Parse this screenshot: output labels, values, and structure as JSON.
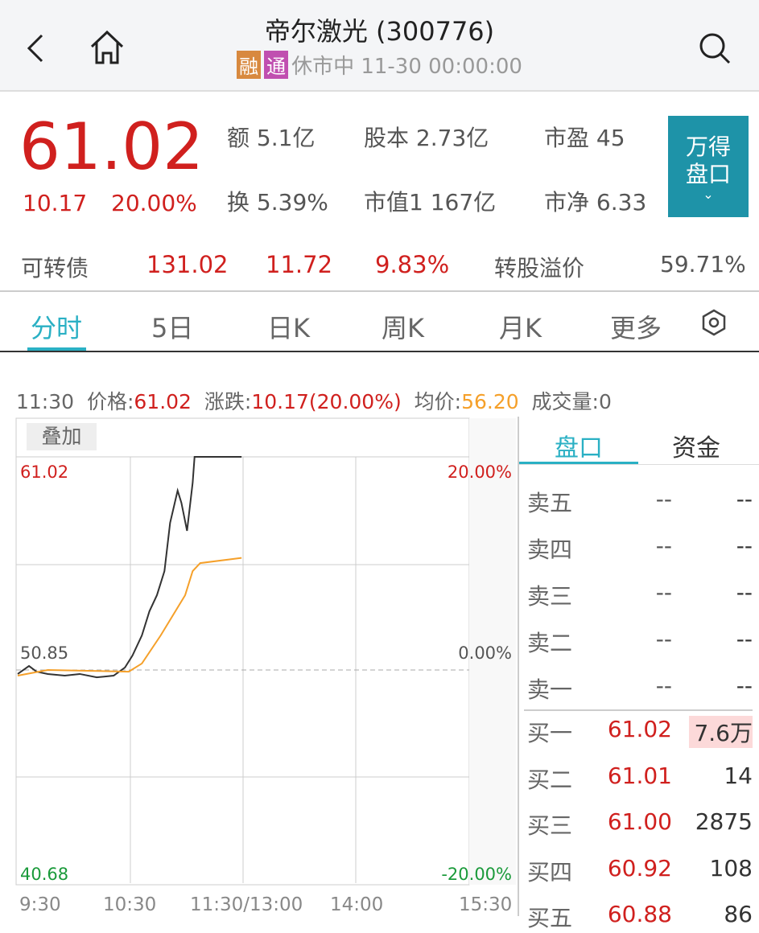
{
  "header": {
    "title": "帝尔激光 (300776)",
    "tag_rong": "融",
    "tag_tong": "通",
    "status": "休市中 11-30 00:00:00",
    "colors": {
      "rong": "#d8893f",
      "tong": "#c04fb0"
    }
  },
  "quote": {
    "price": "61.02",
    "change": "10.17",
    "change_pct": "20.00%",
    "stats": [
      {
        "k": "额",
        "v": "5.1亿"
      },
      {
        "k": "股本",
        "v": "2.73亿"
      },
      {
        "k": "市盈",
        "v": "45"
      },
      {
        "k": "换",
        "v": "5.39%"
      },
      {
        "k": "市值1",
        "v": "167亿"
      },
      {
        "k": "市净",
        "v": "6.33"
      }
    ],
    "wind_button": {
      "line1": "万得",
      "line2": "盘口"
    }
  },
  "bond": {
    "label": "可转债",
    "v1": "131.02",
    "v2": "11.72",
    "v3": "9.83%",
    "premium_label": "转股溢价",
    "premium": "59.71%"
  },
  "tabs": [
    "分时",
    "5日",
    "日K",
    "周K",
    "月K",
    "更多"
  ],
  "info": {
    "time": "11:30",
    "price_label": "价格:",
    "price": "61.02",
    "chg_label": "涨跌:",
    "chg": "10.17(20.00%)",
    "avg_label": "均价:",
    "avg": "56.20",
    "vol_label": "成交量:",
    "vol": "0"
  },
  "overlay_label": "叠加",
  "chart_data": {
    "type": "line",
    "ylim": [
      40.68,
      61.02
    ],
    "y_ticks_left": [
      "61.02",
      "50.85",
      "40.68"
    ],
    "y_ticks_right": [
      "20.00%",
      "0.00%",
      "-20.00%"
    ],
    "x_ticks": [
      "9:30",
      "10:30",
      "11:30/13:00",
      "14:00",
      "15:30"
    ],
    "prev_close": 50.85,
    "series": [
      {
        "key": "price",
        "color": "#333333",
        "points": [
          [
            "9:30",
            50.66
          ],
          [
            "9:36",
            51.04
          ],
          [
            "9:40",
            50.77
          ],
          [
            "9:46",
            50.66
          ],
          [
            "9:55",
            50.58
          ],
          [
            "10:03",
            50.66
          ],
          [
            "10:12",
            50.5
          ],
          [
            "10:21",
            50.58
          ],
          [
            "10:27",
            50.97
          ],
          [
            "10:31",
            51.54
          ],
          [
            "10:36",
            52.5
          ],
          [
            "10:40",
            53.65
          ],
          [
            "10:44",
            54.42
          ],
          [
            "10:48",
            55.57
          ],
          [
            "10:51",
            57.87
          ],
          [
            "10:55",
            59.41
          ],
          [
            "10:57",
            58.83
          ],
          [
            "11:00",
            57.49
          ],
          [
            "11:03",
            59.79
          ],
          [
            "11:04",
            61.02
          ],
          [
            "11:29",
            61.02
          ]
        ]
      },
      {
        "key": "avg",
        "color": "#f5a02a",
        "points": [
          [
            "9:30",
            50.58
          ],
          [
            "9:46",
            50.85
          ],
          [
            "10:29",
            50.77
          ],
          [
            "10:36",
            51.16
          ],
          [
            "10:46",
            52.5
          ],
          [
            "10:59",
            54.42
          ],
          [
            "11:03",
            55.57
          ],
          [
            "11:07",
            55.95
          ],
          [
            "11:29",
            56.2
          ]
        ]
      }
    ]
  },
  "side": {
    "tabs": [
      "盘口",
      "资金"
    ],
    "asks": [
      {
        "l": "卖五",
        "p": "--",
        "v": "--"
      },
      {
        "l": "卖四",
        "p": "--",
        "v": "--"
      },
      {
        "l": "卖三",
        "p": "--",
        "v": "--"
      },
      {
        "l": "卖二",
        "p": "--",
        "v": "--"
      },
      {
        "l": "卖一",
        "p": "--",
        "v": "--"
      }
    ],
    "bids": [
      {
        "l": "买一",
        "p": "61.02",
        "v": "7.6万"
      },
      {
        "l": "买二",
        "p": "61.01",
        "v": "14"
      },
      {
        "l": "买三",
        "p": "61.00",
        "v": "2875"
      },
      {
        "l": "买四",
        "p": "60.92",
        "v": "108"
      },
      {
        "l": "买五",
        "p": "60.88",
        "v": "86"
      }
    ]
  }
}
